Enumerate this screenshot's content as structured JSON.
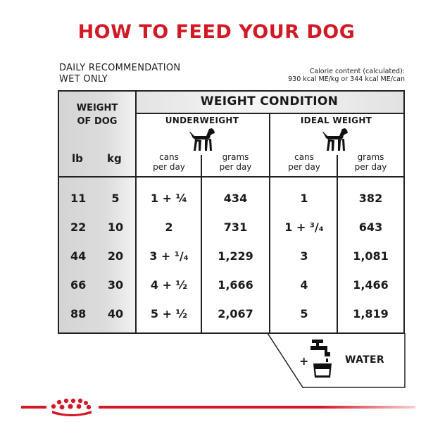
{
  "title": "HOW TO FEED YOUR DOG",
  "daily_recommendation": [
    "DAILY RECOMMENDATION",
    "WET ONLY"
  ],
  "calorie": [
    "Calorie content (calculated):",
    "930 kcal ME/kg or 344 kcal ME/can"
  ],
  "weight_condition": "WEIGHT CONDITION",
  "weight_of_dog": [
    "WEIGHT",
    "OF DOG"
  ],
  "units": {
    "lb": "lb",
    "kg": "kg"
  },
  "groups": [
    {
      "label": "UNDERWEIGHT",
      "icon": "dog-icon",
      "cols": [
        [
          "cans",
          "per day"
        ],
        [
          "grams",
          "per day"
        ]
      ]
    },
    {
      "label": "IDEAL WEIGHT",
      "icon": "dog-icon",
      "cols": [
        [
          "cans",
          "per day"
        ],
        [
          "grams",
          "per day"
        ]
      ]
    }
  ],
  "rows": [
    {
      "lb": "11",
      "kg": "5",
      "under_cans": "1 + ¼",
      "under_grams": "434",
      "ideal_cans": "1",
      "ideal_grams": "382"
    },
    {
      "lb": "22",
      "kg": "10",
      "under_cans": "2",
      "under_grams": "731",
      "ideal_cans": "1 + ³/₄",
      "ideal_grams": "643"
    },
    {
      "lb": "44",
      "kg": "20",
      "under_cans": "3 + ¹/₄",
      "under_grams": "1,229",
      "ideal_cans": "3",
      "ideal_grams": "1,081"
    },
    {
      "lb": "66",
      "kg": "30",
      "under_cans": "4 + ½",
      "under_grams": "1,666",
      "ideal_cans": "4",
      "ideal_grams": "1,466"
    },
    {
      "lb": "88",
      "kg": "40",
      "under_cans": "5 + ½",
      "under_grams": "2,067",
      "ideal_cans": "5",
      "ideal_grams": "1,819"
    }
  ],
  "water": {
    "plus": "+",
    "label": "WATER",
    "icon": "water-tap-icon"
  },
  "brand": {
    "icon": "royal-canin-crown-icon",
    "color": "#d21a26"
  }
}
